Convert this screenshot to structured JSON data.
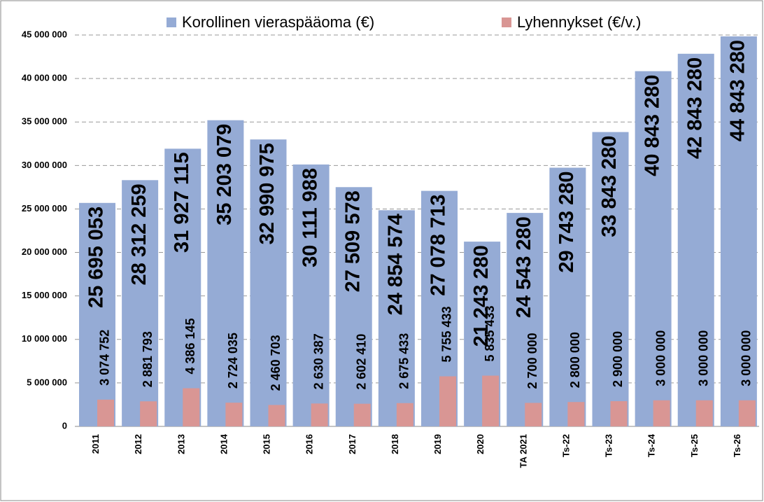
{
  "chart_data": {
    "type": "bar",
    "categories": [
      "2011",
      "2012",
      "2013",
      "2014",
      "2015",
      "2016",
      "2017",
      "2018",
      "2019",
      "2020",
      "TA 2021",
      "Ts-22",
      "Ts-23",
      "Ts-24",
      "Ts-25",
      "Ts-26"
    ],
    "series": [
      {
        "name": "Korollinen vieraspääoma (€)",
        "color": "#95abd5",
        "values": [
          25695053,
          28312259,
          31927115,
          35203079,
          32990975,
          30111988,
          27509578,
          24854574,
          27078713,
          21243280,
          24543280,
          29743280,
          33843280,
          40843280,
          42843280,
          44843280
        ],
        "value_labels": [
          "25 695 053",
          "28 312 259",
          "31 927 115",
          "35 203 079",
          "32 990 975",
          "30 111 988",
          "27 509 578",
          "24 854 574",
          "27 078 713",
          "21 243 280",
          "24 543 280",
          "29 743 280",
          "33 843 280",
          "40 843 280",
          "42 843 280",
          "44 843 280"
        ]
      },
      {
        "name": "Lyhennykset (€/v.)",
        "color": "#d99694",
        "values": [
          3074752,
          2881793,
          4386145,
          2724035,
          2460703,
          2630387,
          2602410,
          2675433,
          5755433,
          5835433,
          2700000,
          2800000,
          2900000,
          3000000,
          3000000,
          3000000
        ],
        "value_labels": [
          "3 074 752",
          "2 881 793",
          "4 386 145",
          "2 724 035",
          "2 460 703",
          "2 630 387",
          "2 602 410",
          "2 675 433",
          "5 755 433",
          "5 835 433",
          "2 700 000",
          "2 800 000",
          "2 900 000",
          "3 000 000",
          "3 000 000",
          "3 000 000"
        ]
      }
    ],
    "ylim": [
      0,
      45000000
    ],
    "yticks": [
      0,
      {
        "value": 5000000,
        "label": "5 000 000"
      },
      {
        "value": 10000000,
        "label": "10 000 000"
      },
      {
        "value": 15000000,
        "label": "15 000 000"
      },
      {
        "value": 20000000,
        "label": "20 000 000"
      },
      {
        "value": 25000000,
        "label": "25 000 000"
      },
      {
        "value": 30000000,
        "label": "30 000 000"
      },
      {
        "value": 35000000,
        "label": "35 000 000"
      },
      {
        "value": 40000000,
        "label": "40 000 000"
      },
      {
        "value": 45000000,
        "label": "45 000 000"
      }
    ],
    "grid": true,
    "legend": "top"
  }
}
